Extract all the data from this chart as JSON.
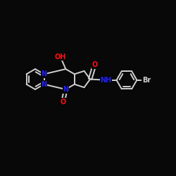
{
  "bg": "#080808",
  "bc": "#d0d0d0",
  "nc": "#2020ff",
  "oc": "#ff1010",
  "brc": "#d0d0d0",
  "lw": 1.4,
  "fs": 7.0,
  "figsize": [
    2.5,
    2.5
  ],
  "dpi": 100,
  "xlim": [
    0,
    10
  ],
  "ylim": [
    1,
    9
  ]
}
